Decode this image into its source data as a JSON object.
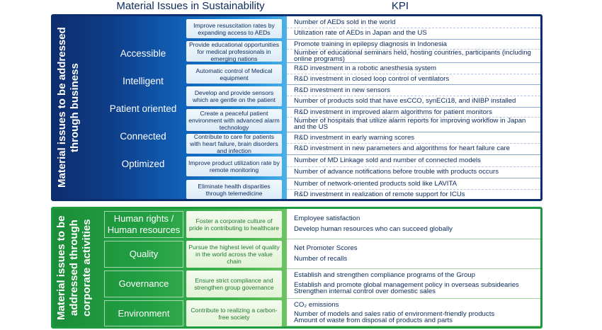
{
  "headers": {
    "material_issues": "Material Issues in Sustainability",
    "kpi": "KPI"
  },
  "business": {
    "vertical_label": "Material issues to be addressed through business",
    "categories": [
      "Accessible",
      "Intelligent",
      "Patient oriented",
      "Connected",
      "Optimized"
    ],
    "rows": [
      {
        "issue": "Improve resuscitation rates by expanding access to AEDs",
        "kpis": [
          "Number of AEDs sold in the world",
          "Utilization rate of AEDs in Japan and the US"
        ]
      },
      {
        "issue": "Provide educational opportunities for medical professionals in emerging nations",
        "kpis": [
          "Promote training in epilepsy diagnosis in Indonesia",
          "Number of educational seminars held, hosting countries, participants (including online programs)"
        ]
      },
      {
        "issue": "Automatic control of Medical equipment",
        "kpis": [
          "R&D investment in a robotic anesthesia system",
          "R&D investment in closed loop control of ventilators"
        ]
      },
      {
        "issue": "Develop and provide sensors which are gentle on the patient",
        "kpis": [
          "R&D investment in new sensors",
          "Number of products sold that have esCCO, synECi18, and iNIBP installed"
        ]
      },
      {
        "issue": "Create a peaceful patient environment with advanced alarm technology",
        "kpis": [
          "R&D investment in improved alarm algorithms for patient monitors",
          "Number of hospitals that utilize alarm reports for improving workflow in Japan and the US"
        ]
      },
      {
        "issue": "Contribute to care for patients with heart failure, brain disorders and infection",
        "kpis": [
          "R&D investment in early warning scores",
          "R&D investment in new parameters and algorithms for heart failure care"
        ]
      },
      {
        "issue": "Improve product utilization rate by remote monitoring",
        "kpis": [
          "Number of MD Linkage sold and number of connected models",
          "Number of advance notifications before trouble with products occurs"
        ]
      },
      {
        "issue": "Eliminate health disparities through telemedicine",
        "kpis": [
          "Number of network-oriented products sold like LAVITA",
          "R&D investment in realization of remote support for ICUs"
        ]
      }
    ]
  },
  "corporate": {
    "vertical_label": "Material issues to be addressed through corporate activities",
    "rows": [
      {
        "category": "Human rights / Human resources",
        "issue": "Foster a corporate culture of pride in contributing to healthcare",
        "kpis": [
          "Employee satisfaction",
          "Develop human resources who can succeed globally"
        ]
      },
      {
        "category": "Quality",
        "issue": "Pursue the highest level of quality in the world across the value chain",
        "kpis": [
          "Net Promoter Scores",
          "Number of recalls"
        ]
      },
      {
        "category": "Governance",
        "issue": "Ensure strict compliance and strengthen group governance",
        "kpis": [
          "Establish and strengthen compliance programs of the Group",
          "Establish and promote global management policy in overseas subsidearies",
          "Strengthen internal control over domestic sales"
        ]
      },
      {
        "category": "Environment",
        "issue": "Contribute to realizing a carbon-free society",
        "kpis": [
          "CO₂ emissions",
          "Number of models and sales ratio of environment-friendly products",
          "Amount of waste from disposal of products and parts"
        ]
      }
    ]
  },
  "colors": {
    "business_dark": "#0d2e6e",
    "business_light": "#4bb1ea",
    "corporate_dark": "#1b8e37",
    "corporate_light": "#6cc462",
    "text": "#0b2a5c"
  }
}
